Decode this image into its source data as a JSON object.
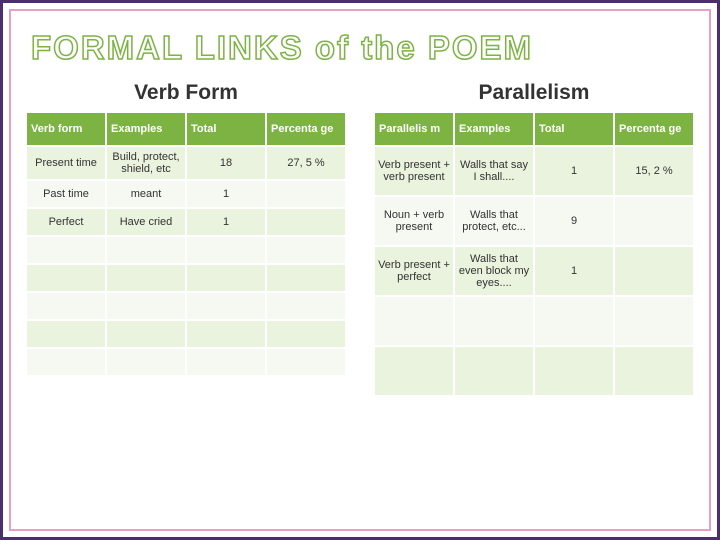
{
  "main_title": "FORMAL LINKS of the POEM",
  "left": {
    "heading": "Verb Form",
    "headers": [
      "Verb form",
      "Examples",
      "Total",
      "Percenta ge"
    ],
    "rows": [
      [
        "Present time",
        "Build, protect, shield, etc",
        "18",
        "27, 5 %"
      ],
      [
        "Past time",
        "meant",
        "1",
        ""
      ],
      [
        "Perfect",
        "Have cried",
        "1",
        ""
      ],
      [
        "",
        "",
        "",
        ""
      ],
      [
        "",
        "",
        "",
        ""
      ],
      [
        "",
        "",
        "",
        ""
      ],
      [
        "",
        "",
        "",
        ""
      ],
      [
        "",
        "",
        "",
        ""
      ]
    ]
  },
  "right": {
    "heading": "Parallelism",
    "headers": [
      "Parallelis m",
      "Examples",
      "Total",
      "Percenta ge"
    ],
    "rows": [
      [
        "Verb present + verb present",
        "Walls that say I shall....",
        "1",
        "15, 2 %"
      ],
      [
        "Noun + verb present",
        "Walls that protect, etc...",
        "9",
        ""
      ],
      [
        "Verb present + perfect",
        "Walls that even block my eyes....",
        "1",
        ""
      ],
      [
        "",
        "",
        "",
        ""
      ],
      [
        "",
        "",
        "",
        ""
      ]
    ]
  },
  "colors": {
    "outer_border": "#4a2e6f",
    "inner_border": "#e89fc5",
    "header_bg": "#7cb342",
    "row_odd": "#eaf3de",
    "row_even": "#f6f9f1"
  }
}
